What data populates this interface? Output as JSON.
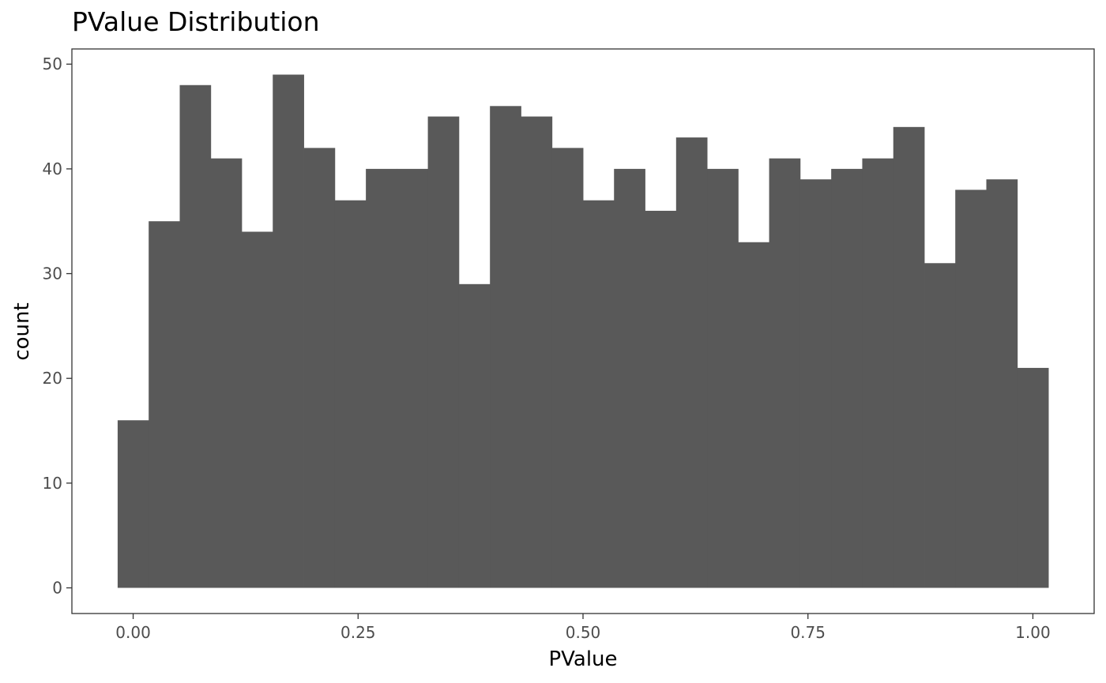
{
  "chart_data": {
    "type": "bar",
    "title": "PValue Distribution",
    "xlabel": "PValue",
    "ylabel": "count",
    "bin_width": 0.0345,
    "bin_centers": [
      0.0,
      0.0345,
      0.069,
      0.1034,
      0.1379,
      0.1724,
      0.2069,
      0.2414,
      0.2759,
      0.3103,
      0.3448,
      0.3793,
      0.4138,
      0.4483,
      0.4828,
      0.5172,
      0.5517,
      0.5862,
      0.6207,
      0.6552,
      0.6897,
      0.7241,
      0.7586,
      0.7931,
      0.8276,
      0.8621,
      0.8966,
      0.931,
      0.9655,
      1.0
    ],
    "values": [
      16,
      35,
      48,
      41,
      34,
      49,
      42,
      37,
      40,
      40,
      45,
      29,
      46,
      45,
      42,
      37,
      40,
      36,
      43,
      40,
      33,
      41,
      39,
      40,
      41,
      44,
      31,
      38,
      39,
      21
    ],
    "xlim": [
      -0.0681,
      1.0681
    ],
    "ylim": [
      -2.45,
      51.45
    ],
    "x_ticks": [
      0,
      0.25,
      0.5,
      0.75,
      1
    ],
    "x_tick_labels": [
      "0.00",
      "0.25",
      "0.50",
      "0.75",
      "1.00"
    ],
    "y_ticks": [
      0,
      10,
      20,
      30,
      40,
      50
    ],
    "y_tick_labels": [
      "0",
      "10",
      "20",
      "30",
      "40",
      "50"
    ],
    "grid": false,
    "bar_color": "#595959",
    "panel_border_color": "#333333",
    "tick_color": "#333333"
  }
}
